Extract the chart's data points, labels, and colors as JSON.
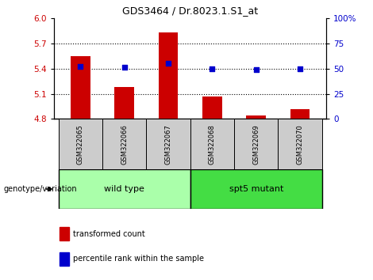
{
  "title": "GDS3464 / Dr.8023.1.S1_at",
  "samples": [
    "GSM322065",
    "GSM322066",
    "GSM322067",
    "GSM322068",
    "GSM322069",
    "GSM322070"
  ],
  "bar_values": [
    5.55,
    5.18,
    5.83,
    5.07,
    4.84,
    4.92
  ],
  "bar_baseline": 4.8,
  "bar_color": "#cc0000",
  "blue_values": [
    5.43,
    5.42,
    5.46,
    5.4,
    5.385,
    5.395
  ],
  "blue_color": "#0000cc",
  "ylim_left": [
    4.8,
    6.0
  ],
  "yticks_left": [
    4.8,
    5.1,
    5.4,
    5.7,
    6.0
  ],
  "ylim_right": [
    0,
    100
  ],
  "yticks_right": [
    0,
    25,
    50,
    75,
    100
  ],
  "ytick_labels_right": [
    "0",
    "25",
    "50",
    "75",
    "100%"
  ],
  "group1_label": "wild type",
  "group2_label": "spt5 mutant",
  "group1_indices": [
    0,
    1,
    2
  ],
  "group2_indices": [
    3,
    4,
    5
  ],
  "group1_color": "#aaffaa",
  "group2_color": "#44dd44",
  "genotype_label": "genotype/variation",
  "legend_bar_label": "transformed count",
  "legend_blue_label": "percentile rank within the sample",
  "tick_label_color_left": "#cc0000",
  "tick_label_color_right": "#0000cc",
  "grid_color": "#000000",
  "sample_bg_color": "#cccccc",
  "bar_width": 0.45
}
